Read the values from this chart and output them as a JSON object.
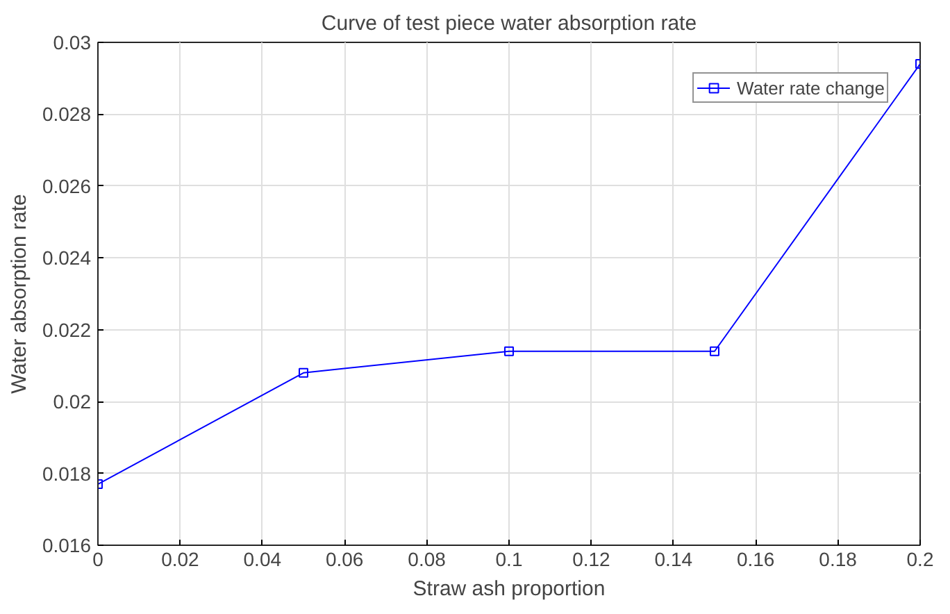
{
  "chart_data": {
    "type": "line",
    "title": "Curve of test piece water absorption rate",
    "xlabel": "Straw ash proportion",
    "ylabel": "Water absorption rate",
    "x": [
      0,
      0.05,
      0.1,
      0.15,
      0.2
    ],
    "series": [
      {
        "name": "Water rate change",
        "color": "#0000ff",
        "values": [
          0.0177,
          0.0208,
          0.0214,
          0.0214,
          0.0294
        ]
      }
    ],
    "xlim": [
      0,
      0.2
    ],
    "xticks": [
      0,
      0.02,
      0.04,
      0.06,
      0.08,
      0.1,
      0.12,
      0.14,
      0.16,
      0.18,
      0.2
    ],
    "ylim": [
      0.016,
      0.03
    ],
    "yticks": [
      0.016,
      0.018,
      0.02,
      0.022,
      0.024,
      0.026,
      0.028,
      0.03
    ],
    "grid": true,
    "legend": "top right",
    "marker": "square",
    "line_style": "solid"
  }
}
